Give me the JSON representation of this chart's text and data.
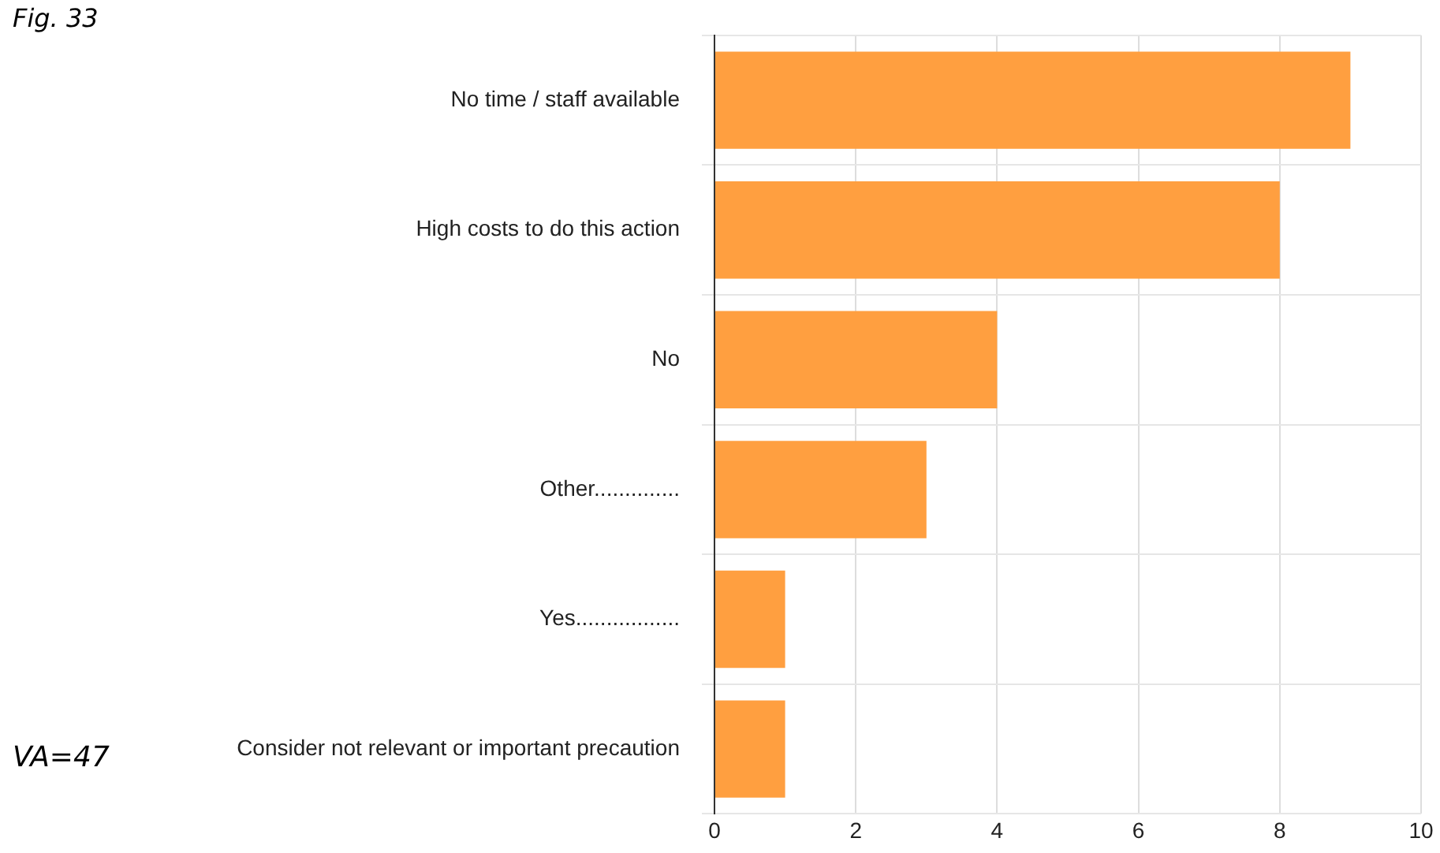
{
  "chart_data": {
    "type": "bar",
    "orientation": "horizontal",
    "title": "Fig. 33",
    "categories": [
      "No time / staff available",
      "High costs to do this action",
      "No",
      "Other..............",
      "Yes.................",
      "Consider not relevant or important precaution"
    ],
    "values": [
      9,
      8,
      4,
      3,
      1,
      1
    ],
    "color": "#ff9f40",
    "xlim": [
      0,
      10
    ],
    "xticks": [
      0,
      2,
      4,
      6,
      8,
      10
    ],
    "grid": true,
    "legend": false,
    "annotations": [
      "VA=47"
    ]
  }
}
